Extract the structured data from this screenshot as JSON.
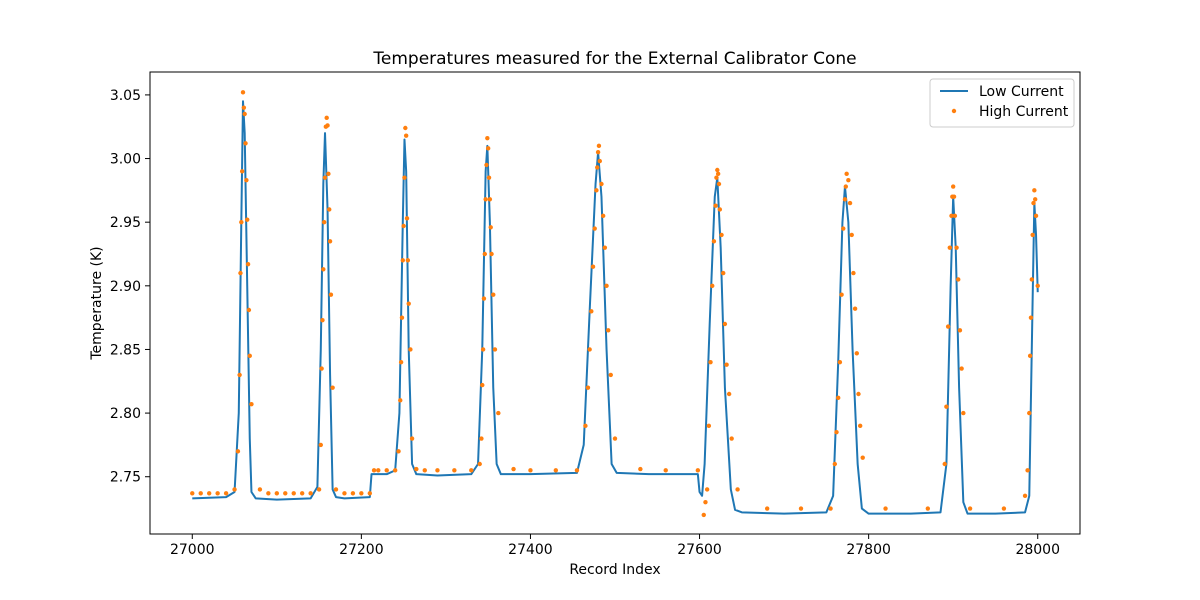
{
  "chart_data": {
    "type": "line",
    "title": "Temperatures measured for the External Calibrator Cone",
    "xlabel": "Record Index",
    "ylabel": "Temperature (K)",
    "xlim": [
      26950,
      28050
    ],
    "ylim": [
      2.705,
      3.068
    ],
    "x_ticks": [
      27000,
      27200,
      27400,
      27600,
      27800,
      28000
    ],
    "y_ticks": [
      2.75,
      2.8,
      2.85,
      2.9,
      2.95,
      3.0,
      3.05
    ],
    "grid": false,
    "legend_position": "top-right",
    "series": [
      {
        "name": "Low Current",
        "style": "line",
        "color": "#1f77b4",
        "x": [
          27000,
          27040,
          27050,
          27055,
          27058,
          27060,
          27062,
          27065,
          27068,
          27070,
          27075,
          27100,
          27140,
          27148,
          27152,
          27155,
          27157,
          27160,
          27163,
          27166,
          27170,
          27180,
          27210,
          27212,
          27215,
          27230,
          27240,
          27245,
          27249,
          27251,
          27253,
          27256,
          27260,
          27265,
          27290,
          27330,
          27338,
          27343,
          27347,
          27349,
          27352,
          27356,
          27360,
          27365,
          27400,
          27455,
          27463,
          27470,
          27477,
          27480,
          27484,
          27490,
          27496,
          27502,
          27540,
          27598,
          27600,
          27603,
          27606,
          27612,
          27618,
          27621,
          27625,
          27630,
          27637,
          27642,
          27650,
          27700,
          27750,
          27758,
          27764,
          27769,
          27772,
          27776,
          27781,
          27787,
          27792,
          27800,
          27850,
          27885,
          27892,
          27897,
          27900,
          27903,
          27907,
          27912,
          27917,
          27950,
          27985,
          27990,
          27994,
          27996,
          27998,
          28000
        ],
        "y": [
          2.733,
          2.734,
          2.738,
          2.8,
          2.95,
          3.045,
          3.02,
          2.9,
          2.78,
          2.738,
          2.733,
          2.732,
          2.733,
          2.742,
          2.85,
          2.98,
          3.02,
          2.96,
          2.83,
          2.74,
          2.734,
          2.733,
          2.734,
          2.752,
          2.752,
          2.752,
          2.755,
          2.8,
          2.95,
          3.015,
          2.99,
          2.85,
          2.76,
          2.752,
          2.751,
          2.752,
          2.76,
          2.85,
          2.99,
          3.01,
          2.95,
          2.82,
          2.76,
          2.752,
          2.752,
          2.753,
          2.775,
          2.88,
          2.98,
          3.005,
          2.97,
          2.85,
          2.76,
          2.753,
          2.752,
          2.752,
          2.738,
          2.735,
          2.76,
          2.87,
          2.97,
          2.985,
          2.93,
          2.82,
          2.74,
          2.724,
          2.722,
          2.721,
          2.722,
          2.735,
          2.84,
          2.95,
          2.978,
          2.95,
          2.85,
          2.76,
          2.725,
          2.721,
          2.721,
          2.722,
          2.76,
          2.9,
          2.97,
          2.93,
          2.82,
          2.73,
          2.721,
          2.721,
          2.722,
          2.735,
          2.89,
          2.965,
          2.94,
          2.895
        ]
      },
      {
        "name": "High Current",
        "style": "scatter",
        "color": "#ff7f0e",
        "x": [
          27000,
          27010,
          27020,
          27030,
          27040,
          27050,
          27054,
          27056,
          27057,
          27058,
          27059,
          27060,
          27061,
          27062,
          27063,
          27064,
          27065,
          27066,
          27067,
          27068,
          27070,
          27080,
          27090,
          27100,
          27110,
          27120,
          27130,
          27140,
          27150,
          27152,
          27153,
          27154,
          27155,
          27156,
          27157,
          27158,
          27159,
          27160,
          27161,
          27162,
          27163,
          27164,
          27166,
          27170,
          27180,
          27190,
          27200,
          27210,
          27215,
          27220,
          27230,
          27240,
          27244,
          27246,
          27247,
          27248,
          27249,
          27250,
          27251,
          27252,
          27253,
          27254,
          27255,
          27256,
          27258,
          27260,
          27265,
          27275,
          27290,
          27310,
          27330,
          27340,
          27342,
          27343,
          27344,
          27345,
          27346,
          27347,
          27348,
          27349,
          27350,
          27351,
          27352,
          27353,
          27354,
          27356,
          27358,
          27362,
          27380,
          27400,
          27430,
          27455,
          27465,
          27468,
          27470,
          27472,
          27474,
          27476,
          27478,
          27479,
          27480,
          27481,
          27482,
          27484,
          27486,
          27488,
          27490,
          27492,
          27495,
          27500,
          27530,
          27560,
          27598,
          27605,
          27607,
          27609,
          27611,
          27613,
          27615,
          27617,
          27619,
          27620,
          27621,
          27622,
          27623,
          27624,
          27626,
          27628,
          27630,
          27632,
          27635,
          27638,
          27645,
          27680,
          27720,
          27755,
          27760,
          27762,
          27764,
          27766,
          27768,
          27770,
          27772,
          27773,
          27774,
          27776,
          27778,
          27780,
          27782,
          27784,
          27786,
          27788,
          27790,
          27793,
          27820,
          27870,
          27890,
          27892,
          27894,
          27896,
          27898,
          27899,
          27900,
          27901,
          27902,
          27904,
          27906,
          27908,
          27910,
          27912,
          27920,
          27960,
          27985,
          27988,
          27990,
          27991,
          27992,
          27993,
          27994,
          27995,
          27996,
          27997,
          27998,
          28000
        ],
        "y": [
          2.737,
          2.737,
          2.737,
          2.737,
          2.737,
          2.74,
          2.77,
          2.83,
          2.91,
          2.95,
          2.99,
          3.052,
          3.04,
          3.035,
          3.012,
          2.983,
          2.952,
          2.917,
          2.881,
          2.845,
          2.807,
          2.74,
          2.737,
          2.737,
          2.737,
          2.737,
          2.737,
          2.737,
          2.74,
          2.775,
          2.835,
          2.873,
          2.913,
          2.95,
          2.985,
          3.025,
          3.032,
          3.026,
          2.988,
          2.96,
          2.935,
          2.893,
          2.82,
          2.74,
          2.737,
          2.737,
          2.737,
          2.737,
          2.755,
          2.755,
          2.755,
          2.755,
          2.77,
          2.81,
          2.84,
          2.875,
          2.92,
          2.947,
          2.985,
          3.024,
          3.018,
          2.953,
          2.92,
          2.886,
          2.85,
          2.78,
          2.756,
          2.755,
          2.755,
          2.755,
          2.755,
          2.76,
          2.78,
          2.822,
          2.85,
          2.89,
          2.925,
          2.968,
          2.995,
          3.016,
          3.008,
          2.985,
          2.968,
          2.946,
          2.925,
          2.893,
          2.85,
          2.8,
          2.756,
          2.755,
          2.755,
          2.755,
          2.79,
          2.82,
          2.85,
          2.88,
          2.915,
          2.945,
          2.975,
          2.993,
          3.005,
          3.01,
          2.998,
          2.98,
          2.955,
          2.93,
          2.9,
          2.865,
          2.83,
          2.78,
          2.756,
          2.755,
          2.755,
          2.72,
          2.73,
          2.74,
          2.79,
          2.84,
          2.9,
          2.935,
          2.963,
          2.985,
          2.991,
          2.988,
          2.98,
          2.96,
          2.94,
          2.91,
          2.87,
          2.838,
          2.815,
          2.78,
          2.74,
          2.725,
          2.725,
          2.725,
          2.76,
          2.785,
          2.812,
          2.84,
          2.893,
          2.945,
          2.968,
          2.978,
          2.988,
          2.983,
          2.965,
          2.94,
          2.91,
          2.882,
          2.847,
          2.815,
          2.79,
          2.765,
          2.725,
          2.725,
          2.76,
          2.805,
          2.868,
          2.93,
          2.955,
          2.97,
          2.978,
          2.97,
          2.955,
          2.93,
          2.905,
          2.865,
          2.835,
          2.8,
          2.725,
          2.725,
          2.735,
          2.755,
          2.8,
          2.845,
          2.875,
          2.905,
          2.94,
          2.965,
          2.975,
          2.968,
          2.955,
          2.9
        ]
      }
    ]
  }
}
